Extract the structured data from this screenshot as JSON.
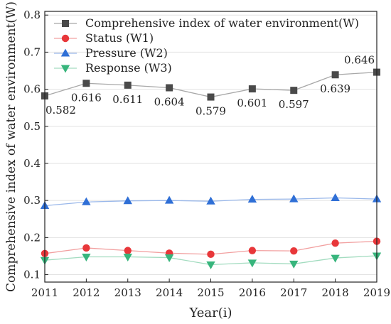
{
  "chart_data": {
    "type": "line",
    "title": "",
    "xlabel": "Year(i)",
    "ylabel": "Comprehensive index of water environment(W)",
    "x": [
      2011,
      2012,
      2013,
      2014,
      2015,
      2016,
      2017,
      2018,
      2019
    ],
    "x_tick_labels": [
      "2011",
      "2012",
      "2013",
      "2014",
      "2015",
      "2016",
      "2017",
      "2018",
      "2019"
    ],
    "y_tick_labels": [
      "0.1",
      "0.2",
      "0.3",
      "0.4",
      "0.5",
      "0.6",
      "0.7",
      "0.8"
    ],
    "xlim": [
      2011,
      2019
    ],
    "ylim": [
      0.1,
      0.8
    ],
    "grid": true,
    "legend_position": "top",
    "series": [
      {
        "name": "Comprehensive index of water environment(W)",
        "marker": "square",
        "color": "#4a4a4a",
        "line_color": "#a8a8a8",
        "values": [
          0.582,
          0.616,
          0.611,
          0.604,
          0.579,
          0.601,
          0.597,
          0.639,
          0.646
        ],
        "data_labels": [
          "0.582",
          "0.616",
          "0.611",
          "0.604",
          "0.579",
          "0.601",
          "0.597",
          "0.639",
          "0.646"
        ]
      },
      {
        "name": "Status (W1)",
        "marker": "circle",
        "color": "#e8373a",
        "line_color": "#f2a0a0",
        "values": [
          0.157,
          0.172,
          0.165,
          0.158,
          0.155,
          0.165,
          0.164,
          0.185,
          0.19
        ]
      },
      {
        "name": "Pressure (W2)",
        "marker": "triangle-up",
        "color": "#2f6fd6",
        "line_color": "#9ab8ea",
        "values": [
          0.286,
          0.296,
          0.299,
          0.3,
          0.298,
          0.303,
          0.304,
          0.307,
          0.304
        ]
      },
      {
        "name": "Response (W3)",
        "marker": "triangle-down",
        "color": "#37b57c",
        "line_color": "#a3dcc0",
        "values": [
          0.139,
          0.148,
          0.148,
          0.146,
          0.127,
          0.132,
          0.129,
          0.145,
          0.151
        ]
      }
    ]
  }
}
